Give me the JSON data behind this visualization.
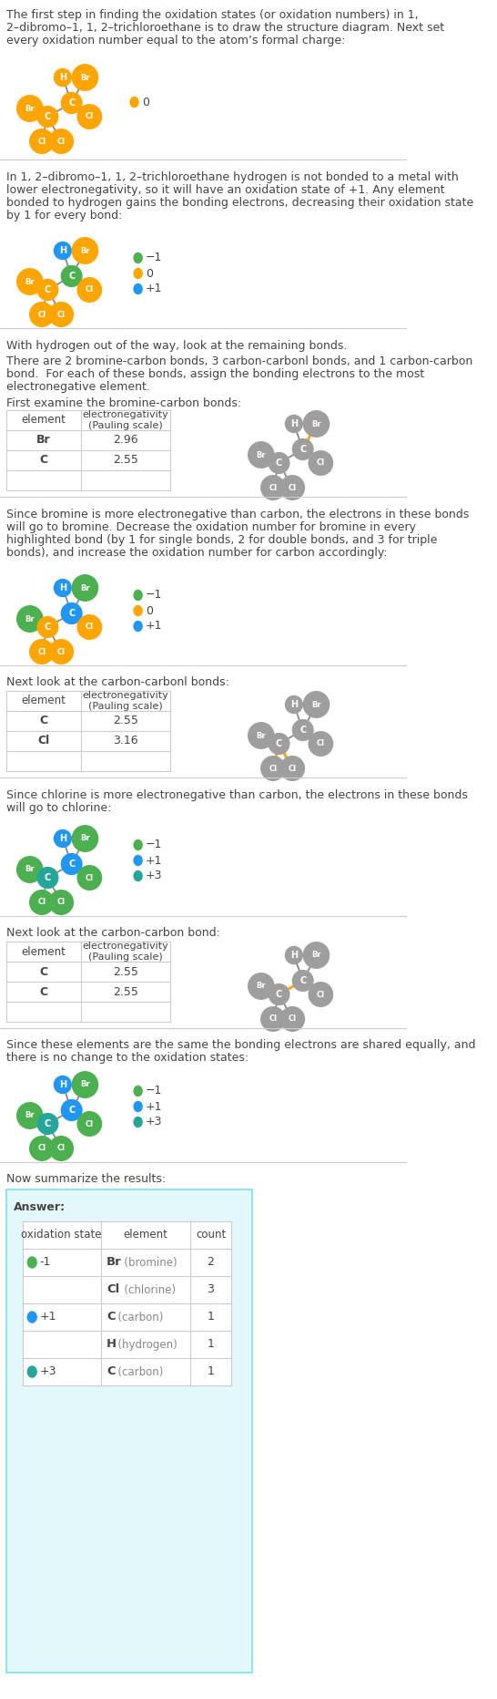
{
  "bg_color": "#ffffff",
  "text_color": "#444444",
  "orange_color": "#FFA500",
  "green_color": "#4CAF50",
  "blue_color": "#2196F3",
  "teal_color": "#26A69A",
  "gray_color": "#9E9E9E",
  "title_text1": "The first step in finding the oxidation states (or oxidation numbers) in 1,",
  "title_text2": "2–dibromo–1, 1, 2–trichloroethane is to draw the structure diagram. Next set",
  "title_text3": "every oxidation number equal to the atom’s formal charge:",
  "section2_text1": "In 1, 2–dibromo–1, 1, 2–trichloroethane hydrogen is not bonded to a metal with",
  "section2_text2": "lower electronegativity, so it will have an oxidation state of +1. Any element",
  "section2_text3": "bonded to hydrogen gains the bonding electrons, decreasing their oxidation state",
  "section2_text4": "by 1 for every bond:",
  "section3_text1": "With hydrogen out of the way, look at the remaining bonds.",
  "section3_text2": "There are 2 bromine-carbon bonds, 3 carbon-carbonl bonds, and 1 carbon-carbon",
  "section3_text3": "bond.  For each of these bonds, assign the bonding electrons to the most",
  "section3_text4": "electronegative element.",
  "section3_text5": "First examine the bromine-carbon bonds:",
  "section4_text1": "Since bromine is more electronegative than carbon, the electrons in these bonds",
  "section4_text2": "will go to bromine. Decrease the oxidation number for bromine in every",
  "section4_text3": "highlighted bond (by 1 for single bonds, 2 for double bonds, and 3 for triple",
  "section4_text4": "bonds), and increase the oxidation number for carbon accordingly:",
  "section5_text1": "Next look at the carbon-carbonl bonds:",
  "section6_text1": "Since chlorine is more electronegative than carbon, the electrons in these bonds",
  "section6_text2": "will go to chlorine:",
  "section7_text1": "Next look at the carbon-carbon bond:",
  "section8_text1": "Since these elements are the same the bonding electrons are shared equally, and",
  "section8_text2": "there is no change to the oxidation states:",
  "section9_text1": "Now summarize the results:",
  "answer_header": "Answer:",
  "br_en": "2.96",
  "c_en": "2.55",
  "cl_en": "3.16"
}
